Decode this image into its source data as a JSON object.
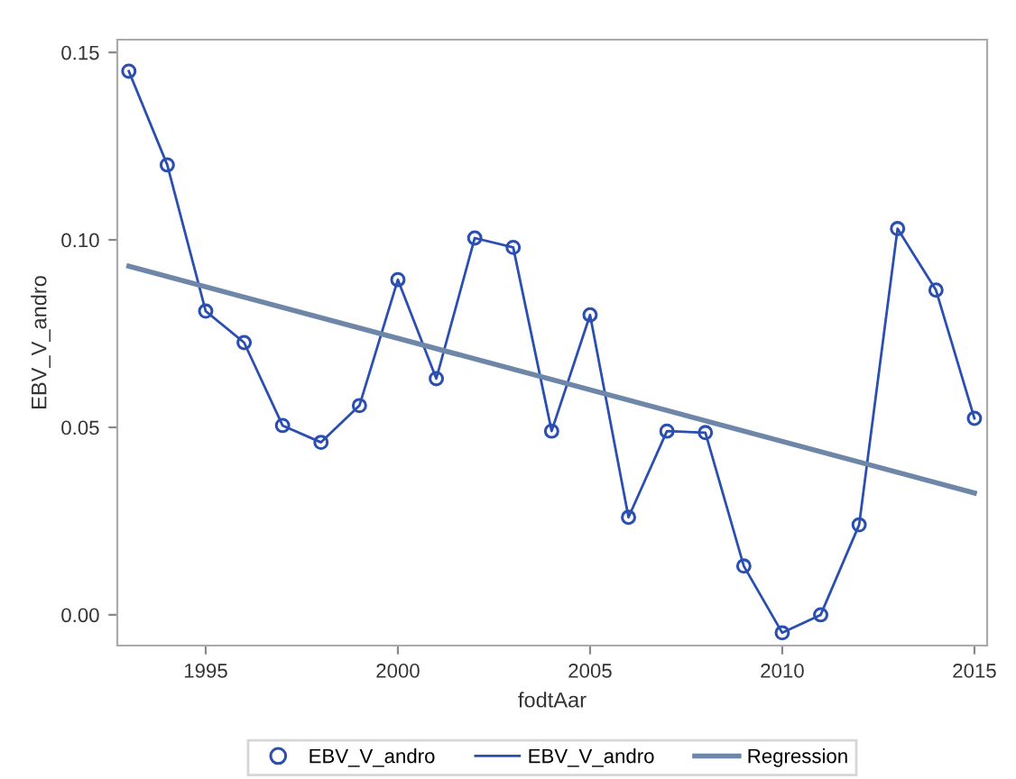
{
  "chart_data": {
    "type": "line",
    "xlabel": "fodtAar",
    "ylabel": "EBV_V_andro",
    "x": [
      1993,
      1994,
      1995,
      1996,
      1997,
      1998,
      1999,
      2000,
      2001,
      2002,
      2003,
      2004,
      2005,
      2006,
      2007,
      2008,
      2009,
      2010,
      2011,
      2012,
      2013,
      2014,
      2015
    ],
    "series": [
      {
        "name": "EBV_V_andro",
        "type": "scatter",
        "marker": "circle",
        "color": "#2a4fb0",
        "values": [
          0.145,
          0.12,
          0.081,
          0.0726,
          0.0505,
          0.046,
          0.0558,
          0.0894,
          0.063,
          0.1005,
          0.098,
          0.049,
          0.08,
          0.026,
          0.049,
          0.0486,
          0.013,
          -0.0048,
          0.0,
          0.024,
          0.103,
          0.0866,
          0.0524
        ]
      },
      {
        "name": "EBV_V_andro",
        "type": "line",
        "marker": "none",
        "color": "#2a4fb0",
        "values": [
          0.145,
          0.12,
          0.081,
          0.0726,
          0.0505,
          0.046,
          0.0558,
          0.0894,
          0.063,
          0.1005,
          0.098,
          0.049,
          0.08,
          0.026,
          0.049,
          0.0486,
          0.013,
          -0.0048,
          0.0,
          0.024,
          0.103,
          0.0866,
          0.0524
        ]
      },
      {
        "name": "Regression",
        "type": "line",
        "marker": "none",
        "color": "#6e86a8",
        "x": [
          1993,
          2015
        ],
        "values": [
          0.093,
          0.0325
        ]
      }
    ],
    "xlim": [
      1992.7,
      2015.33
    ],
    "ylim": [
      -0.0082,
      0.1534
    ],
    "xticks": [
      1995,
      2000,
      2005,
      2010,
      2015
    ],
    "yticks": [
      {
        "value": 0.0,
        "label": "0.00"
      },
      {
        "value": 0.05,
        "label": "0.05"
      },
      {
        "value": 0.1,
        "label": "0.10"
      },
      {
        "value": 0.15,
        "label": "0.15"
      }
    ],
    "grid": false,
    "legend": "bottom"
  }
}
